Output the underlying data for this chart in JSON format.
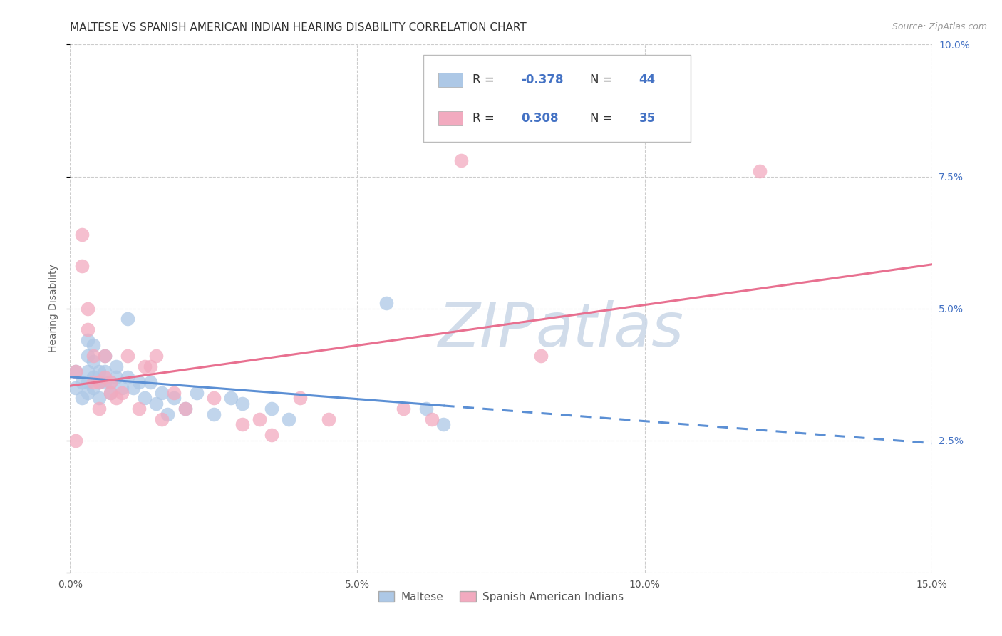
{
  "title": "MALTESE VS SPANISH AMERICAN INDIAN HEARING DISABILITY CORRELATION CHART",
  "source": "Source: ZipAtlas.com",
  "ylabel": "Hearing Disability",
  "xlim": [
    0.0,
    0.15
  ],
  "ylim": [
    0.0,
    0.1
  ],
  "xticks": [
    0.0,
    0.05,
    0.1,
    0.15
  ],
  "xticklabels": [
    "0.0%",
    "5.0%",
    "10.0%",
    "15.0%"
  ],
  "yticks_right": [
    0.0,
    0.025,
    0.05,
    0.075,
    0.1
  ],
  "yticklabels_right": [
    "",
    "2.5%",
    "5.0%",
    "7.5%",
    "10.0%"
  ],
  "maltese_R": -0.378,
  "maltese_N": 44,
  "sai_R": 0.308,
  "sai_N": 35,
  "maltese_color": "#adc8e6",
  "sai_color": "#f2aabf",
  "trend_maltese_color": "#5b8fd4",
  "trend_sai_color": "#e87090",
  "watermark_color": "#ccd9e8",
  "background_color": "#ffffff",
  "grid_color": "#cccccc",
  "maltese_x": [
    0.001,
    0.001,
    0.002,
    0.002,
    0.003,
    0.003,
    0.003,
    0.003,
    0.003,
    0.004,
    0.004,
    0.004,
    0.004,
    0.005,
    0.005,
    0.005,
    0.006,
    0.006,
    0.006,
    0.007,
    0.007,
    0.008,
    0.008,
    0.009,
    0.01,
    0.01,
    0.011,
    0.012,
    0.013,
    0.014,
    0.015,
    0.016,
    0.017,
    0.018,
    0.02,
    0.022,
    0.025,
    0.028,
    0.03,
    0.035,
    0.038,
    0.055,
    0.062,
    0.065
  ],
  "maltese_y": [
    0.038,
    0.035,
    0.036,
    0.033,
    0.044,
    0.041,
    0.038,
    0.036,
    0.034,
    0.043,
    0.04,
    0.037,
    0.035,
    0.038,
    0.036,
    0.033,
    0.041,
    0.038,
    0.036,
    0.036,
    0.034,
    0.039,
    0.037,
    0.035,
    0.048,
    0.037,
    0.035,
    0.036,
    0.033,
    0.036,
    0.032,
    0.034,
    0.03,
    0.033,
    0.031,
    0.034,
    0.03,
    0.033,
    0.032,
    0.031,
    0.029,
    0.051,
    0.031,
    0.028
  ],
  "sai_x": [
    0.001,
    0.001,
    0.002,
    0.002,
    0.003,
    0.003,
    0.004,
    0.004,
    0.005,
    0.005,
    0.006,
    0.006,
    0.007,
    0.007,
    0.008,
    0.009,
    0.01,
    0.012,
    0.013,
    0.014,
    0.015,
    0.016,
    0.018,
    0.02,
    0.025,
    0.03,
    0.033,
    0.035,
    0.04,
    0.045,
    0.058,
    0.063,
    0.068,
    0.082,
    0.12
  ],
  "sai_y": [
    0.038,
    0.025,
    0.064,
    0.058,
    0.05,
    0.046,
    0.041,
    0.036,
    0.036,
    0.031,
    0.041,
    0.037,
    0.036,
    0.034,
    0.033,
    0.034,
    0.041,
    0.031,
    0.039,
    0.039,
    0.041,
    0.029,
    0.034,
    0.031,
    0.033,
    0.028,
    0.029,
    0.026,
    0.033,
    0.029,
    0.031,
    0.029,
    0.078,
    0.041,
    0.076
  ],
  "legend_labels": [
    "Maltese",
    "Spanish American Indians"
  ],
  "title_fontsize": 11,
  "axis_label_fontsize": 10,
  "tick_fontsize": 10,
  "legend_fontsize": 12,
  "right_ytick_color": "#4472c4",
  "legend_text_color": "#333333",
  "legend_value_color": "#4472c4"
}
